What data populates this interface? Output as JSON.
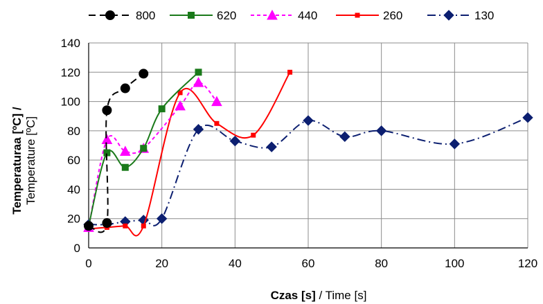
{
  "chart_data": {
    "type": "line",
    "xlabel": {
      "bold": "Czas [s]",
      "normal": " / Time [s]"
    },
    "ylabel": {
      "bold": "Temperaturaa [ºC] /",
      "normal": "Temperature [ºC]"
    },
    "xlim": [
      0,
      120
    ],
    "ylim": [
      0,
      140
    ],
    "xticks": [
      "0",
      "20",
      "40",
      "60",
      "80",
      "100",
      "120"
    ],
    "yticks": [
      "0",
      "20",
      "40",
      "60",
      "80",
      "100",
      "120",
      "140"
    ],
    "grid": true,
    "legend": "top",
    "series": [
      {
        "name": "800",
        "color": "#000000",
        "dash": "10,6",
        "marker": "circle",
        "x": [
          0,
          5,
          5,
          10,
          15
        ],
        "y": [
          15,
          17,
          94,
          109,
          119
        ]
      },
      {
        "name": "620",
        "color": "#1a7a1a",
        "dash": "",
        "marker": "square",
        "x": [
          0,
          5,
          10,
          15,
          20,
          30
        ],
        "y": [
          15,
          65,
          55,
          68,
          95,
          120
        ]
      },
      {
        "name": "440",
        "color": "#ff00ff",
        "dash": "5,4",
        "marker": "triangle",
        "x": [
          0,
          5,
          10,
          15,
          25,
          30,
          35
        ],
        "y": [
          14,
          74,
          66,
          68,
          97,
          113,
          100
        ]
      },
      {
        "name": "260",
        "color": "#ff0000",
        "dash": "",
        "marker": "smallsquare",
        "x": [
          0,
          5,
          10,
          15,
          25,
          35,
          45,
          55
        ],
        "y": [
          13,
          14,
          15,
          15,
          106,
          85,
          77,
          120
        ]
      },
      {
        "name": "130",
        "color": "#0c1f70",
        "dash": "12,5,2,5",
        "marker": "diamond",
        "x": [
          0,
          5,
          10,
          15,
          20,
          30,
          40,
          50,
          60,
          70,
          80,
          100,
          120
        ],
        "y": [
          16,
          16,
          18,
          19,
          20,
          81,
          73,
          69,
          87,
          76,
          80,
          71,
          89
        ]
      }
    ]
  }
}
